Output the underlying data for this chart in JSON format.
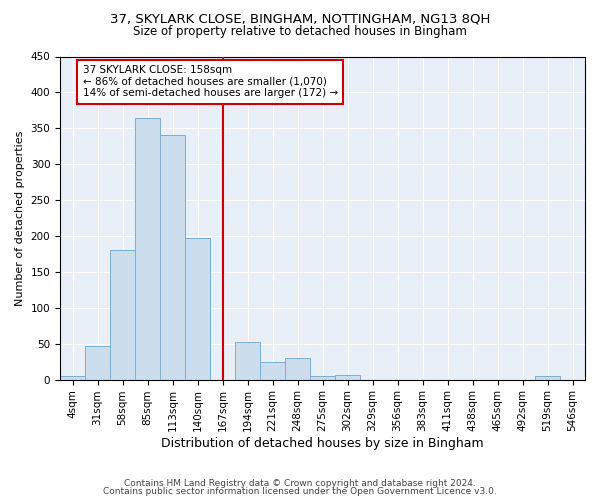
{
  "title1": "37, SKYLARK CLOSE, BINGHAM, NOTTINGHAM, NG13 8QH",
  "title2": "Size of property relative to detached houses in Bingham",
  "xlabel": "Distribution of detached houses by size in Bingham",
  "ylabel": "Number of detached properties",
  "footnote1": "Contains HM Land Registry data © Crown copyright and database right 2024.",
  "footnote2": "Contains public sector information licensed under the Open Government Licence v3.0.",
  "bar_labels": [
    "4sqm",
    "31sqm",
    "58sqm",
    "85sqm",
    "113sqm",
    "140sqm",
    "167sqm",
    "194sqm",
    "221sqm",
    "248sqm",
    "275sqm",
    "302sqm",
    "329sqm",
    "356sqm",
    "383sqm",
    "411sqm",
    "438sqm",
    "465sqm",
    "492sqm",
    "519sqm",
    "546sqm"
  ],
  "bar_heights": [
    5,
    47,
    180,
    365,
    340,
    197,
    0,
    52,
    25,
    30,
    5,
    7,
    0,
    0,
    0,
    0,
    0,
    0,
    0,
    5,
    0
  ],
  "bar_color": "#ccdded",
  "bar_edge_color": "#7bafd4",
  "bar_edge_width": 0.7,
  "vline_x": 6,
  "vline_color": "#cc0000",
  "annotation_text": "37 SKYLARK CLOSE: 158sqm\n← 86% of detached houses are smaller (1,070)\n14% of semi-detached houses are larger (172) →",
  "annotation_box_color": "#ffffff",
  "annotation_box_edge_color": "#cc0000",
  "ylim": [
    0,
    450
  ],
  "yticks": [
    0,
    50,
    100,
    150,
    200,
    250,
    300,
    350,
    400,
    450
  ],
  "bg_color": "#e8eff7",
  "grid_color": "#ffffff",
  "title1_fontsize": 9.5,
  "title2_fontsize": 8.5,
  "xlabel_fontsize": 9,
  "ylabel_fontsize": 8,
  "tick_fontsize": 7.5,
  "annot_fontsize": 7.5,
  "footnote_fontsize": 6.5
}
